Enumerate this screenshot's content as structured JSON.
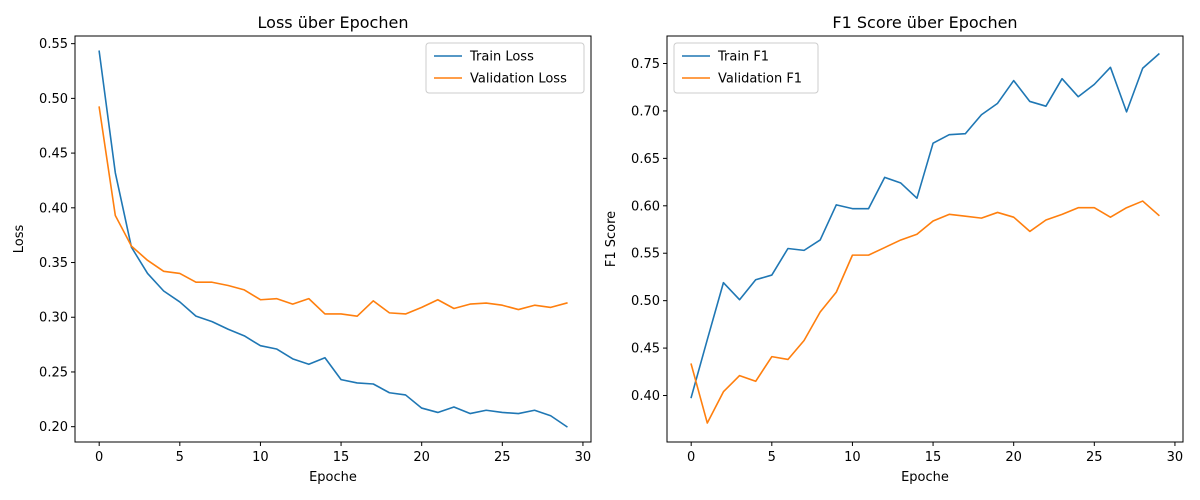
{
  "chart_data": [
    {
      "type": "line",
      "title": "Loss über Epochen",
      "xlabel": "Epoche",
      "ylabel": "Loss",
      "xlim": [
        -1.5,
        30.5
      ],
      "ylim": [
        0.186,
        0.557
      ],
      "xticks": [
        0,
        5,
        10,
        15,
        20,
        25,
        30
      ],
      "yticks": [
        0.2,
        0.25,
        0.3,
        0.35,
        0.4,
        0.45,
        0.5,
        0.55
      ],
      "ytick_labels": [
        "0.20",
        "0.25",
        "0.30",
        "0.35",
        "0.40",
        "0.45",
        "0.50",
        "0.55"
      ],
      "legend_position": "top-right",
      "grid": false,
      "x": [
        0,
        1,
        2,
        3,
        4,
        5,
        6,
        7,
        8,
        9,
        10,
        11,
        12,
        13,
        14,
        15,
        16,
        17,
        18,
        19,
        20,
        21,
        22,
        23,
        24,
        25,
        26,
        27,
        28,
        29
      ],
      "series": [
        {
          "name": "Train Loss",
          "color": "#1f77b4",
          "values": [
            0.543,
            0.432,
            0.364,
            0.34,
            0.324,
            0.314,
            0.301,
            0.296,
            0.289,
            0.283,
            0.274,
            0.271,
            0.262,
            0.257,
            0.263,
            0.243,
            0.24,
            0.239,
            0.231,
            0.229,
            0.217,
            0.213,
            0.218,
            0.212,
            0.215,
            0.213,
            0.212,
            0.215,
            0.21,
            0.2
          ]
        },
        {
          "name": "Validation Loss",
          "color": "#ff7f0e",
          "values": [
            0.492,
            0.393,
            0.365,
            0.352,
            0.342,
            0.34,
            0.332,
            0.332,
            0.329,
            0.325,
            0.316,
            0.317,
            0.312,
            0.317,
            0.303,
            0.303,
            0.301,
            0.315,
            0.304,
            0.303,
            0.309,
            0.316,
            0.308,
            0.312,
            0.313,
            0.311,
            0.307,
            0.311,
            0.309,
            0.313
          ]
        }
      ]
    },
    {
      "type": "line",
      "title": "F1 Score über Epochen",
      "xlabel": "Epoche",
      "ylabel": "F1 Score",
      "xlim": [
        -1.5,
        30.5
      ],
      "ylim": [
        0.351,
        0.779
      ],
      "xticks": [
        0,
        5,
        10,
        15,
        20,
        25,
        30
      ],
      "yticks": [
        0.4,
        0.45,
        0.5,
        0.55,
        0.6,
        0.65,
        0.7,
        0.75
      ],
      "ytick_labels": [
        "0.40",
        "0.45",
        "0.50",
        "0.55",
        "0.60",
        "0.65",
        "0.70",
        "0.75"
      ],
      "legend_position": "top-left",
      "grid": false,
      "x": [
        0,
        1,
        2,
        3,
        4,
        5,
        6,
        7,
        8,
        9,
        10,
        11,
        12,
        13,
        14,
        15,
        16,
        17,
        18,
        19,
        20,
        21,
        22,
        23,
        24,
        25,
        26,
        27,
        28,
        29
      ],
      "series": [
        {
          "name": "Train F1",
          "color": "#1f77b4",
          "values": [
            0.398,
            0.459,
            0.519,
            0.501,
            0.522,
            0.527,
            0.555,
            0.553,
            0.564,
            0.601,
            0.597,
            0.597,
            0.63,
            0.624,
            0.608,
            0.666,
            0.675,
            0.676,
            0.696,
            0.708,
            0.732,
            0.71,
            0.705,
            0.734,
            0.715,
            0.728,
            0.746,
            0.699,
            0.745,
            0.76
          ]
        },
        {
          "name": "Validation F1",
          "color": "#ff7f0e",
          "values": [
            0.433,
            0.371,
            0.404,
            0.421,
            0.415,
            0.441,
            0.438,
            0.458,
            0.488,
            0.509,
            0.548,
            0.548,
            0.556,
            0.564,
            0.57,
            0.584,
            0.591,
            0.589,
            0.587,
            0.593,
            0.588,
            0.573,
            0.585,
            0.591,
            0.598,
            0.598,
            0.588,
            0.598,
            0.605,
            0.59
          ]
        }
      ]
    }
  ]
}
